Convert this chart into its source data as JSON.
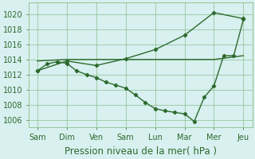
{
  "xlabel": "Pression niveau de la mer( hPa )",
  "x_labels": [
    "Sam",
    "Dim",
    "Ven",
    "Sam",
    "Lun",
    "Mar",
    "Mer",
    "Jeu"
  ],
  "x_ticks": [
    0,
    1,
    2,
    3,
    4,
    5,
    6,
    7
  ],
  "ylim": [
    1005.0,
    1021.5
  ],
  "yticks": [
    1006,
    1008,
    1010,
    1012,
    1014,
    1016,
    1018,
    1020
  ],
  "line_color": "#2d6a2d",
  "bg_color": "#d8f0f0",
  "grid_color": "#8abf8a",
  "tick_fontsize": 7,
  "xlabel_fontsize": 8.5,
  "line1_x": [
    0,
    1,
    2,
    3,
    4,
    5,
    6,
    7
  ],
  "line1_y": [
    1012.5,
    1013.8,
    1013.2,
    1014.1,
    1015.3,
    1017.2,
    1020.2,
    1019.4
  ],
  "line2_x": [
    0,
    1,
    2,
    3,
    4,
    5,
    6,
    7
  ],
  "line2_y": [
    1013.8,
    1014.0,
    1014.0,
    1014.0,
    1014.0,
    1014.0,
    1014.0,
    1014.5
  ],
  "line3_x": [
    0,
    0.33,
    0.67,
    1,
    1.33,
    1.67,
    2,
    2.33,
    2.67,
    3,
    3.33,
    3.67,
    4,
    4.33,
    4.67,
    5,
    5.33,
    5.67,
    6,
    6.33,
    6.67,
    7
  ],
  "line3_y": [
    1012.5,
    1013.4,
    1013.7,
    1013.5,
    1012.5,
    1012.0,
    1011.6,
    1011.0,
    1010.6,
    1010.2,
    1009.3,
    1008.3,
    1007.5,
    1007.2,
    1007.0,
    1006.8,
    1005.8,
    1009.0,
    1010.5,
    1014.5,
    1014.5,
    1019.3
  ]
}
